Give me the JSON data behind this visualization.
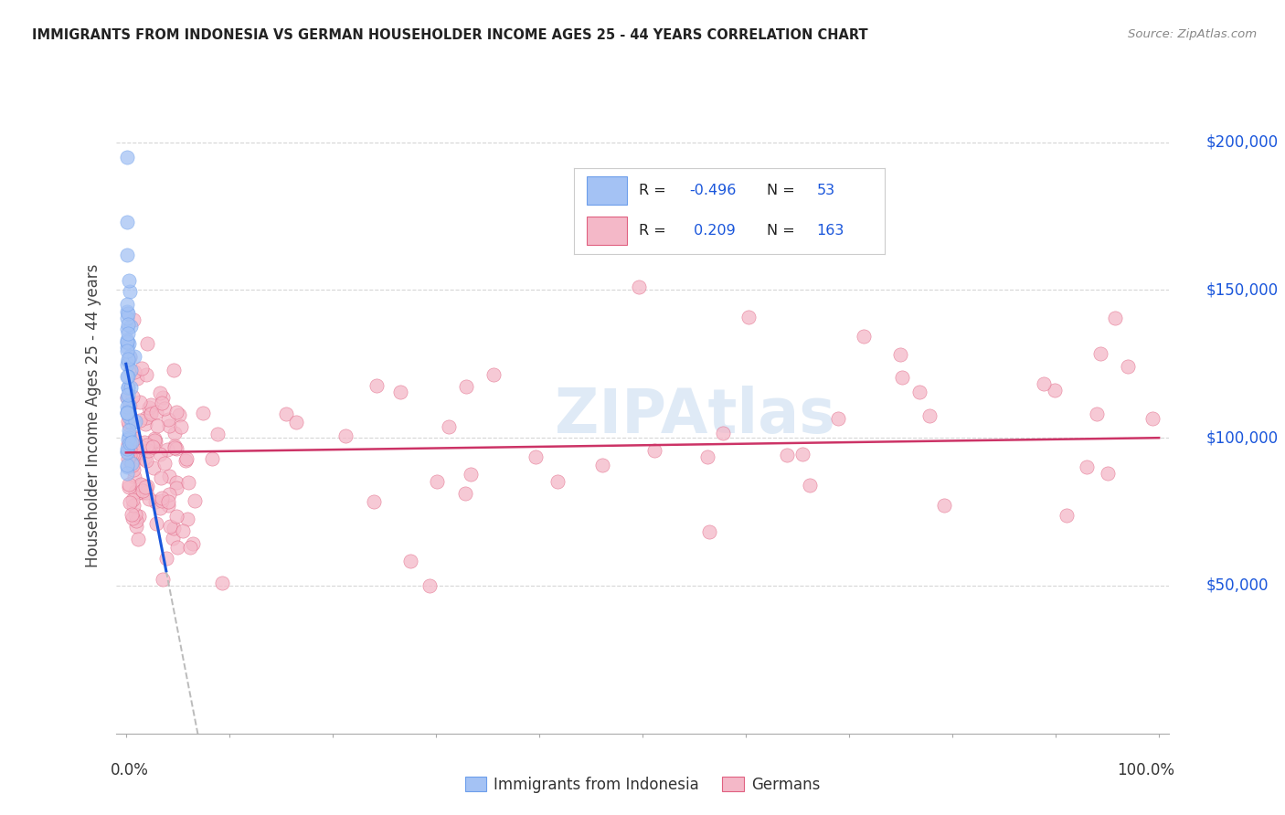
{
  "title": "IMMIGRANTS FROM INDONESIA VS GERMAN HOUSEHOLDER INCOME AGES 25 - 44 YEARS CORRELATION CHART",
  "source": "Source: ZipAtlas.com",
  "ylabel": "Householder Income Ages 25 - 44 years",
  "blue_scatter_color": "#a4c2f4",
  "blue_edge_color": "#6d9eeb",
  "blue_line_color": "#1a56db",
  "blue_dash_color": "#bbbbbb",
  "pink_scatter_color": "#f4b8c8",
  "pink_edge_color": "#e06080",
  "pink_line_color": "#cc3366",
  "watermark_color": "#dce8f5",
  "right_label_color": "#1a56db",
  "title_color": "#222222",
  "source_color": "#888888",
  "ylabel_color": "#444444",
  "legend_text_color": "#222222",
  "legend_value_color": "#1a56db",
  "blue_R": -0.496,
  "blue_N": 53,
  "pink_R": 0.209,
  "pink_N": 163,
  "ylim_max": 215000,
  "yticks": [
    50000,
    100000,
    150000,
    200000
  ],
  "ytick_labels": [
    "$50,000",
    "$100,000",
    "$150,000",
    "$200,000"
  ],
  "scatter_size": 120,
  "scatter_alpha": 0.75
}
